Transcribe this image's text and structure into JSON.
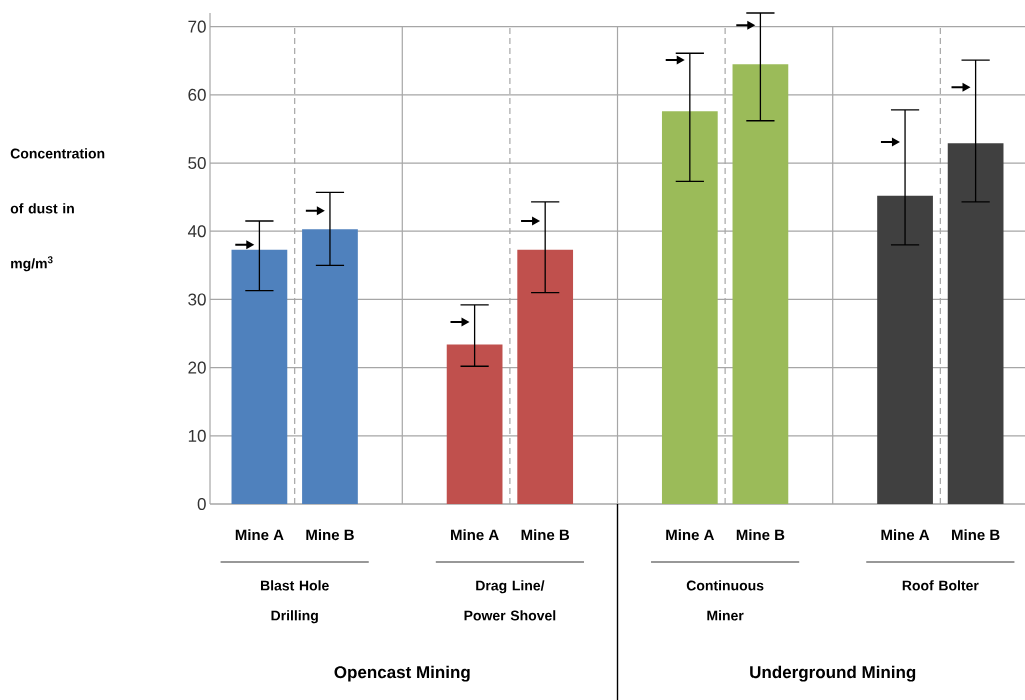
{
  "chart_data": {
    "type": "bar",
    "ylabel": "Concentration of dust in mg/m$^{3}$",
    "categories": [
      "Mine A",
      "Mine B",
      "Mine A",
      "Mine B",
      "Mine A",
      "Mine B",
      "Mine A",
      "Mine B"
    ],
    "series": [
      {
        "type": "bar",
        "colors": [
          "#4f81bd",
          "#4f81bd",
          "#c0504d",
          "#c0504d",
          "#9bbb59",
          "#9bbb59",
          "#404040",
          "#404040"
        ],
        "values": [
          37.3,
          40.3,
          23.4,
          37.3,
          57.6,
          64.5,
          45.2,
          52.9
        ],
        "errors": [
          [
            31.3,
            41.5
          ],
          [
            35.0,
            45.7
          ],
          [
            20.2,
            29.2
          ],
          [
            31.0,
            44.3
          ],
          [
            47.3,
            66.1
          ],
          [
            56.2,
            72.0
          ],
          [
            38.0,
            57.8
          ],
          [
            44.3,
            65.1
          ]
        ]
      },
      {
        "type": "scatter",
        "marker": "triangle",
        "color": "#000000",
        "values": [
          38.0,
          43.0,
          26.7,
          41.5,
          65.1,
          70.2,
          53.1,
          61.1
        ]
      }
    ],
    "ylim": [
      0,
      72
    ],
    "yticks": [
      0,
      10,
      20,
      30,
      40,
      50,
      60,
      70
    ],
    "grid": true,
    "annotations": [
      "Blast Hole Drilling",
      "Drag Line/ Power Shovel",
      "Continuous Miner",
      "Roof Bolter",
      "Opencast Mining",
      "Underground Mining"
    ]
  }
}
